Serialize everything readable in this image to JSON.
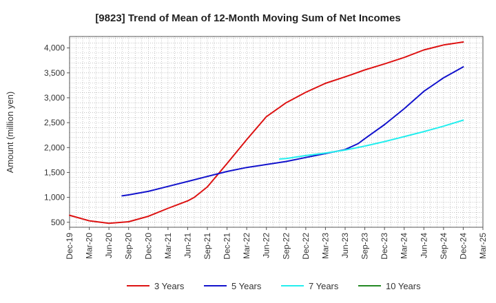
{
  "chart_data": {
    "type": "line",
    "title": "[9823]  Trend of Mean of 12-Month Moving Sum of Net Incomes",
    "xlabel": "",
    "ylabel": "Amount (million yen)",
    "x_ticks": [
      "Dec-19",
      "Mar-20",
      "Jun-20",
      "Sep-20",
      "Dec-20",
      "Mar-21",
      "Jun-21",
      "Sep-21",
      "Dec-21",
      "Mar-22",
      "Jun-22",
      "Sep-22",
      "Dec-22",
      "Mar-23",
      "Jun-23",
      "Sep-23",
      "Dec-23",
      "Mar-24",
      "Jun-24",
      "Sep-24",
      "Dec-24",
      "Mar-25"
    ],
    "y_ticks": [
      500,
      1000,
      1500,
      2000,
      2500,
      3000,
      3500,
      4000
    ],
    "y_tick_labels": [
      "500",
      "1,000",
      "1,500",
      "2,000",
      "2,500",
      "3,000",
      "3,500",
      "4,000"
    ],
    "ylim": [
      400,
      4230
    ],
    "grid": true,
    "legend_position": "bottom",
    "series": [
      {
        "name": "3 Years",
        "color": "#dd1111",
        "x": [
          "Dec-19",
          "Mar-20",
          "Jun-20",
          "Sep-20",
          "Dec-20",
          "Mar-21",
          "Jun-21",
          "Jul-21",
          "Sep-21",
          "Dec-21",
          "Mar-22",
          "Jun-22",
          "Sep-22",
          "Dec-22",
          "Mar-23",
          "Jun-23",
          "Sep-23",
          "Dec-23",
          "Mar-24",
          "Jun-24",
          "Sep-24",
          "Dec-24"
        ],
        "values": [
          640,
          530,
          480,
          510,
          620,
          780,
          930,
          1000,
          1210,
          1680,
          2160,
          2620,
          2900,
          3110,
          3290,
          3420,
          3560,
          3680,
          3810,
          3960,
          4060,
          4120
        ]
      },
      {
        "name": "5 Years",
        "color": "#1111cc",
        "x": [
          "Aug-20",
          "Sep-20",
          "Dec-20",
          "Mar-21",
          "Jun-21",
          "Sep-21",
          "Dec-21",
          "Mar-22",
          "Jun-22",
          "Sep-22",
          "Dec-22",
          "Mar-23",
          "Jun-23",
          "Aug-23",
          "Sep-23",
          "Dec-23",
          "Mar-24",
          "Jun-24",
          "Sep-24",
          "Dec-24"
        ],
        "values": [
          1030,
          1050,
          1120,
          1220,
          1320,
          1420,
          1520,
          1600,
          1660,
          1720,
          1800,
          1880,
          1960,
          2080,
          2180,
          2460,
          2780,
          3130,
          3400,
          3620
        ]
      },
      {
        "name": "7 Years",
        "color": "#22eeee",
        "x": [
          "Aug-22",
          "Sep-22",
          "Dec-22",
          "Mar-23",
          "Jun-23",
          "Sep-23",
          "Dec-23",
          "Mar-24",
          "Jun-24",
          "Sep-24",
          "Dec-24"
        ],
        "values": [
          1770,
          1780,
          1840,
          1890,
          1950,
          2030,
          2120,
          2220,
          2320,
          2430,
          2550
        ]
      },
      {
        "name": "10 Years",
        "color": "#228822",
        "x": [],
        "values": []
      }
    ]
  }
}
